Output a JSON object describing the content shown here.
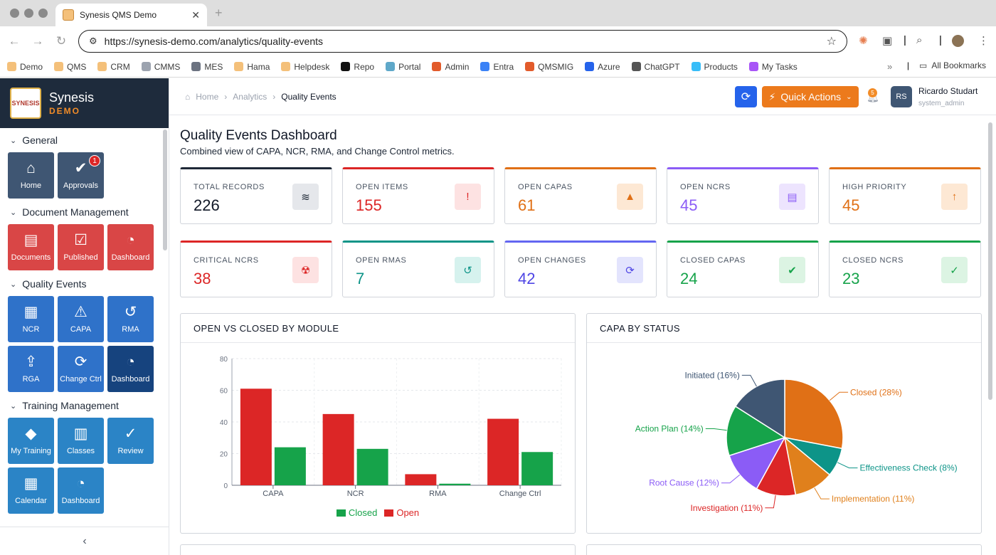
{
  "browser": {
    "tab_title": "Synesis QMS Demo",
    "url_host": "https://synesis-demo.com",
    "url_path": "/analytics/quality-events",
    "bookmarks": [
      {
        "label": "Demo",
        "color": "#f4c07a"
      },
      {
        "label": "QMS",
        "color": "#f4c07a"
      },
      {
        "label": "CRM",
        "color": "#f4c07a"
      },
      {
        "label": "CMMS",
        "color": "#9ca3af"
      },
      {
        "label": "MES",
        "color": "#6b7280"
      },
      {
        "label": "Hama",
        "color": "#f4c07a"
      },
      {
        "label": "Helpdesk",
        "color": "#f4c07a"
      },
      {
        "label": "Repo",
        "color": "#111111"
      },
      {
        "label": "Portal",
        "color": "#5fa8c9"
      },
      {
        "label": "Admin",
        "color": "#e25b2b"
      },
      {
        "label": "Entra",
        "color": "#3b82f6"
      },
      {
        "label": "QMSMIG",
        "color": "#e25b2b"
      },
      {
        "label": "Azure",
        "color": "#2563eb"
      },
      {
        "label": "ChatGPT",
        "color": "#555555"
      },
      {
        "label": "Products",
        "color": "#38bdf8"
      },
      {
        "label": "My Tasks",
        "color": "#a855f7"
      }
    ],
    "all_bookmarks": "All Bookmarks"
  },
  "brand": {
    "name": "Synesis",
    "sub": "DEMO",
    "logo_text": "SYNESIS"
  },
  "sidebar": {
    "sections": [
      {
        "title": "General",
        "tiles": [
          {
            "label": "Home",
            "icon": "⌂",
            "color": "slate"
          },
          {
            "label": "Approvals",
            "icon": "✔",
            "color": "slate",
            "badge": "1"
          }
        ]
      },
      {
        "title": "Document Management",
        "tiles": [
          {
            "label": "Documents",
            "icon": "▤",
            "color": "red"
          },
          {
            "label": "Published",
            "icon": "☑",
            "color": "red"
          },
          {
            "label": "Dashboard",
            "icon": "◔",
            "color": "red"
          }
        ]
      },
      {
        "title": "Quality Events",
        "tiles": [
          {
            "label": "NCR",
            "icon": "▦",
            "color": "blue"
          },
          {
            "label": "CAPA",
            "icon": "⚠",
            "color": "blue"
          },
          {
            "label": "RMA",
            "icon": "↺",
            "color": "blue"
          },
          {
            "label": "RGA",
            "icon": "⇪",
            "color": "blue"
          },
          {
            "label": "Change Ctrl",
            "icon": "⟳",
            "color": "blue"
          },
          {
            "label": "Dashboard",
            "icon": "◔",
            "color": "navy"
          }
        ]
      },
      {
        "title": "Training Management",
        "tiles": [
          {
            "label": "My Training",
            "icon": "◆",
            "color": "sky"
          },
          {
            "label": "Classes",
            "icon": "▥",
            "color": "sky"
          },
          {
            "label": "Review",
            "icon": "✓",
            "color": "sky"
          },
          {
            "label": "Calendar",
            "icon": "▦",
            "color": "sky"
          },
          {
            "label": "Dashboard",
            "icon": "◔",
            "color": "sky"
          }
        ]
      }
    ],
    "collapse_icon": "‹"
  },
  "header": {
    "breadcrumb": [
      "Home",
      "Analytics",
      "Quality Events"
    ],
    "quick_actions": "Quick Actions",
    "notifications_count": "5",
    "user_initials": "RS",
    "user_name": "Ricardo Studart",
    "user_role": "system_admin"
  },
  "page": {
    "title": "Quality Events Dashboard",
    "subtitle": "Combined view of CAPA, NCR, RMA, and Change Control metrics."
  },
  "kpis": [
    {
      "label": "TOTAL RECORDS",
      "value": "226",
      "color": "#111827",
      "top": "#1f2937",
      "icon": "≋",
      "icon_bg": "#e5e7eb",
      "icon_color": "#1f2937"
    },
    {
      "label": "OPEN ITEMS",
      "value": "155",
      "color": "#dc2626",
      "top": "#dc2626",
      "icon": "!",
      "icon_bg": "#fde2e2",
      "icon_color": "#dc2626"
    },
    {
      "label": "OPEN CAPAS",
      "value": "61",
      "color": "#e07016",
      "top": "#e07016",
      "icon": "▲",
      "icon_bg": "#fde8d4",
      "icon_color": "#e07016"
    },
    {
      "label": "OPEN NCRS",
      "value": "45",
      "color": "#8b5cf6",
      "top": "#8b5cf6",
      "icon": "▤",
      "icon_bg": "#ede4fe",
      "icon_color": "#8b5cf6"
    },
    {
      "label": "HIGH PRIORITY",
      "value": "45",
      "color": "#e07016",
      "top": "#e07016",
      "icon": "↑",
      "icon_bg": "#fde8d4",
      "icon_color": "#e07016"
    },
    {
      "label": "CRITICAL NCRS",
      "value": "38",
      "color": "#dc2626",
      "top": "#dc2626",
      "icon": "☢",
      "icon_bg": "#fde2e2",
      "icon_color": "#dc2626"
    },
    {
      "label": "OPEN RMAS",
      "value": "7",
      "color": "#0d9488",
      "top": "#0d9488",
      "icon": "↺",
      "icon_bg": "#d6f2ee",
      "icon_color": "#0d9488"
    },
    {
      "label": "OPEN CHANGES",
      "value": "42",
      "color": "#4f46e5",
      "top": "#6366f1",
      "icon": "⟳",
      "icon_bg": "#e3e4fd",
      "icon_color": "#4f46e5"
    },
    {
      "label": "CLOSED CAPAS",
      "value": "24",
      "color": "#16a34a",
      "top": "#16a34a",
      "icon": "✔",
      "icon_bg": "#dcf4e3",
      "icon_color": "#16a34a"
    },
    {
      "label": "CLOSED NCRS",
      "value": "23",
      "color": "#16a34a",
      "top": "#16a34a",
      "icon": "✓",
      "icon_bg": "#dcf4e3",
      "icon_color": "#16a34a"
    }
  ],
  "chart_data": [
    {
      "type": "bar",
      "title": "OPEN VS CLOSED BY MODULE",
      "categories": [
        "CAPA",
        "NCR",
        "RMA",
        "Change Ctrl"
      ],
      "series": [
        {
          "name": "Open",
          "color": "#dc2626",
          "values": [
            61,
            45,
            7,
            42
          ]
        },
        {
          "name": "Closed",
          "color": "#16a34a",
          "values": [
            24,
            23,
            1,
            21
          ]
        }
      ],
      "ylim": [
        0,
        80
      ],
      "yticks": [
        0,
        20,
        40,
        60,
        80
      ],
      "legend": [
        {
          "name": "Closed",
          "color": "#16a34a"
        },
        {
          "name": "Open",
          "color": "#dc2626"
        }
      ],
      "grid": true
    },
    {
      "type": "pie",
      "title": "CAPA BY STATUS",
      "slices": [
        {
          "label": "Closed (28%)",
          "value": 28,
          "color": "#e07016"
        },
        {
          "label": "Effectiveness Check (8%)",
          "value": 8,
          "color": "#0d9488"
        },
        {
          "label": "Implementation (11%)",
          "value": 11,
          "color": "#e0801c"
        },
        {
          "label": "Investigation (11%)",
          "value": 11,
          "color": "#dc2626"
        },
        {
          "label": "Root Cause (12%)",
          "value": 12,
          "color": "#8b5cf6"
        },
        {
          "label": "Action Plan (14%)",
          "value": 14,
          "color": "#16a34a"
        },
        {
          "label": "Initiated (16%)",
          "value": 16,
          "color": "#3f5673"
        }
      ]
    }
  ]
}
